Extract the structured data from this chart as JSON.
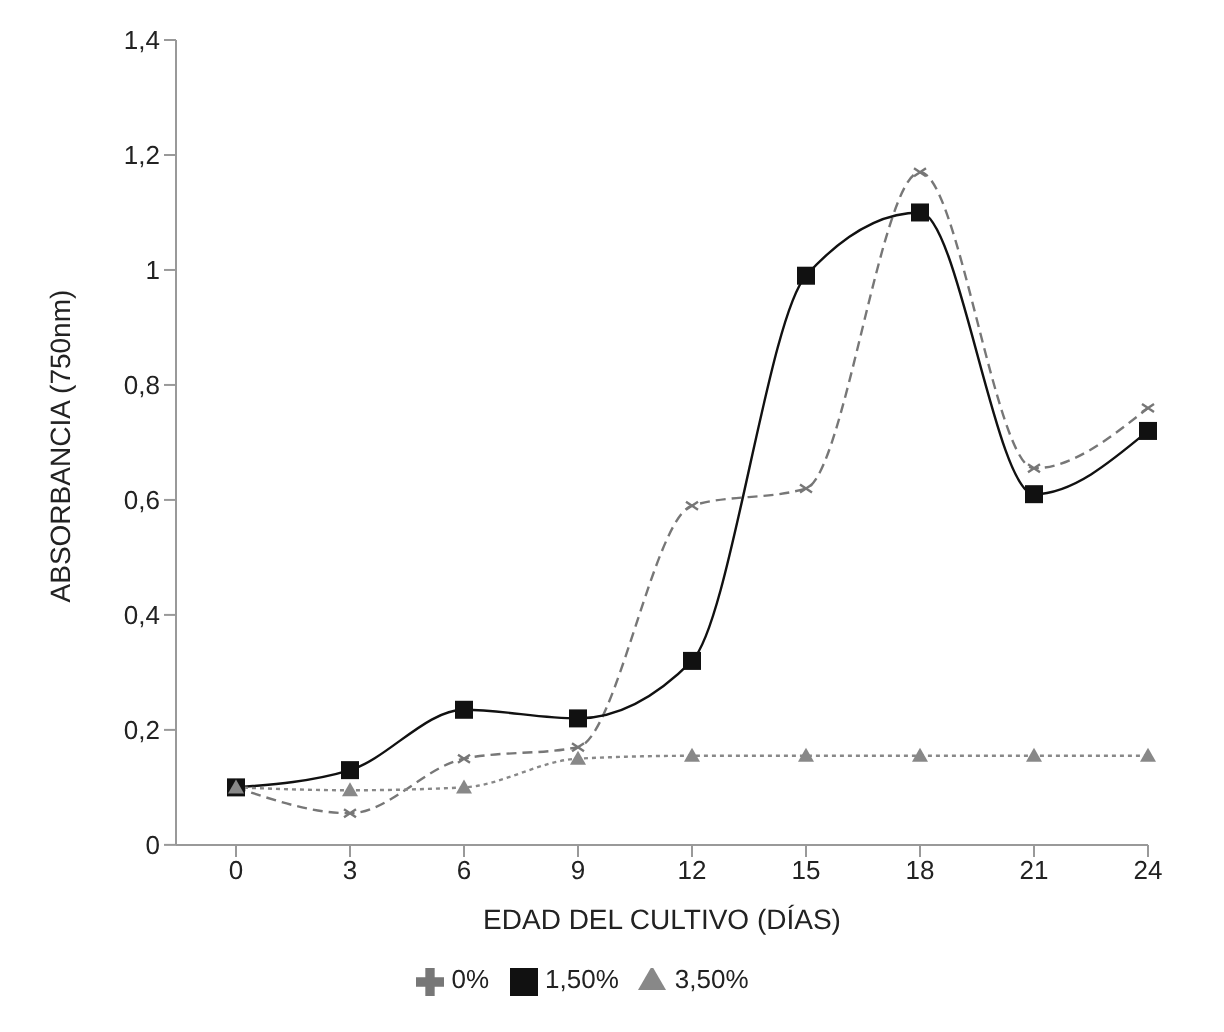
{
  "chart_data": {
    "type": "line",
    "xlabel": "EDAD DEL CULTIVO (DÍAS)",
    "ylabel": "ABSORBANCIA (750nm)",
    "categories": [
      "0",
      "3",
      "6",
      "9",
      "12",
      "15",
      "18",
      "21",
      "24"
    ],
    "ylim": [
      0,
      1.4
    ],
    "yticks": [
      0,
      {
        "value": 0.2,
        "label": "0,2"
      },
      {
        "value": 0.4,
        "label": "0,4"
      },
      {
        "value": 0.6,
        "label": "0,6"
      },
      {
        "value": 0.8,
        "label": "0,8"
      },
      1,
      {
        "value": 1.2,
        "label": "1,2"
      },
      {
        "value": 1.4,
        "label": "1,4"
      }
    ],
    "grid": false,
    "legend": "bottom",
    "series": [
      {
        "name": "0%",
        "color": "#777777",
        "marker": "cross",
        "line_style": "dashed",
        "values": [
          0.1,
          0.055,
          0.15,
          0.17,
          0.59,
          0.62,
          1.17,
          0.655,
          0.76
        ]
      },
      {
        "name": "1,50%",
        "color": "#111111",
        "marker": "square",
        "line_style": "solid",
        "values": [
          0.1,
          0.13,
          0.235,
          0.22,
          0.32,
          0.99,
          1.1,
          0.61,
          0.72
        ]
      },
      {
        "name": "3,50%",
        "color": "#888888",
        "marker": "triangle",
        "line_style": "dotted",
        "values": [
          0.1,
          0.095,
          0.1,
          0.15,
          0.155,
          0.155,
          0.155,
          0.155,
          0.155
        ]
      }
    ]
  }
}
